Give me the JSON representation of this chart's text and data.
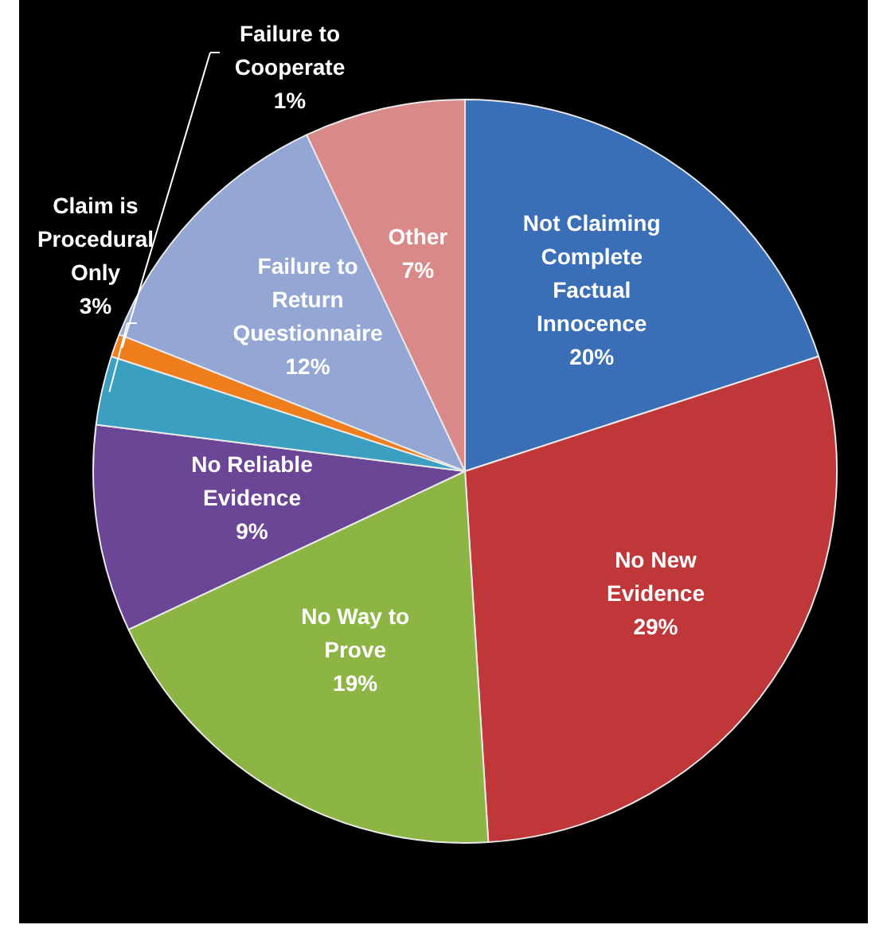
{
  "chart_data": {
    "type": "pie",
    "categories": [
      "Not Claiming Complete Factual Innocence",
      "No New Evidence",
      "No Way to Prove",
      "No Reliable Evidence",
      "Claim is Procedural Only",
      "Failure to Cooperate",
      "Failure to Return Questionnaire",
      "Other"
    ],
    "values": [
      20,
      29,
      19,
      9,
      3,
      1,
      12,
      7
    ],
    "value_labels": [
      "20%",
      "29%",
      "19%",
      "9%",
      "3%",
      "1%",
      "12%",
      "7%"
    ],
    "colors": [
      "#3a6fb8",
      "#c0373a",
      "#8db544",
      "#6b4596",
      "#3a9fc0",
      "#f07d1b",
      "#94a6d4",
      "#d98a88"
    ],
    "legend": false
  }
}
